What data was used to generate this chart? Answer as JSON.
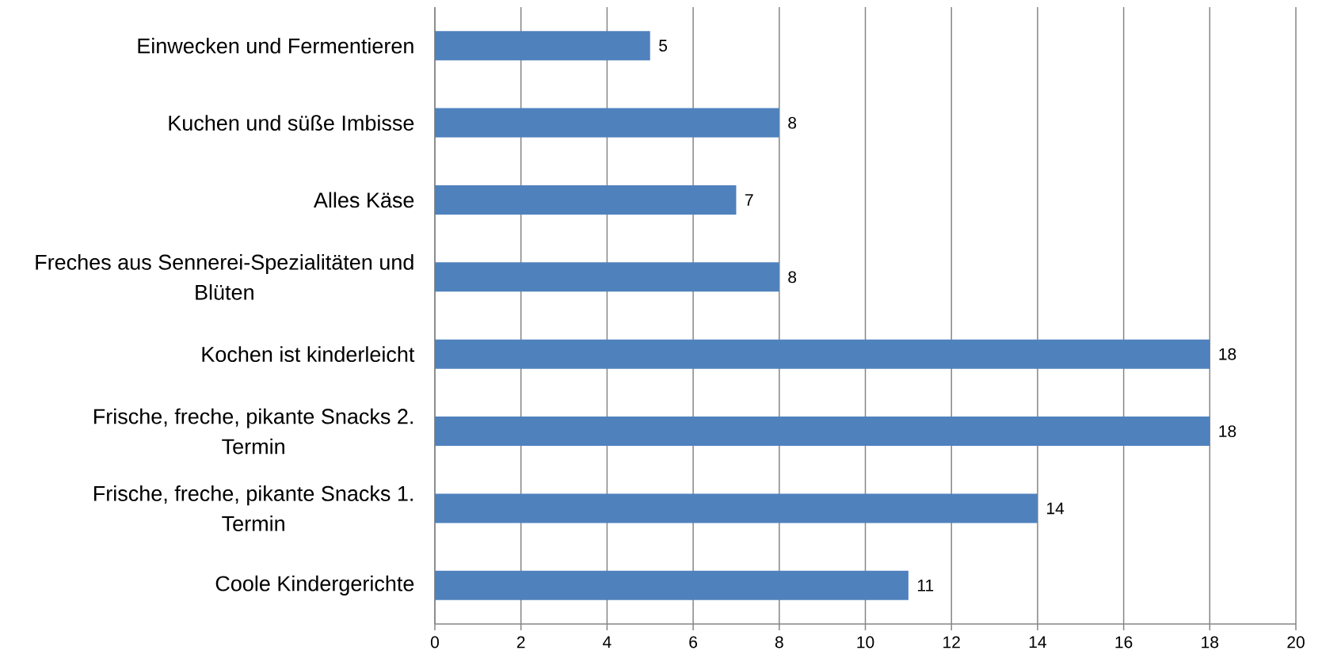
{
  "chart_data": {
    "type": "bar",
    "orientation": "horizontal",
    "categories": [
      "Einwecken und Fermentieren",
      "Kuchen und süße Imbisse",
      "Alles Käse",
      "Freches aus Sennerei-Spezialitäten und Blüten",
      "Kochen ist kinderleicht",
      "Frische, freche, pikante Snacks 2. Termin",
      "Frische, freche, pikante Snacks 1. Termin",
      "Coole Kindergerichte"
    ],
    "values": [
      5,
      8,
      7,
      8,
      18,
      18,
      14,
      11
    ],
    "color": "#4f81bd",
    "xlim": [
      0,
      20
    ],
    "xticks": [
      0,
      2,
      4,
      6,
      8,
      10,
      12,
      14,
      16,
      18,
      20
    ],
    "grid": "x",
    "data_labels": true
  }
}
